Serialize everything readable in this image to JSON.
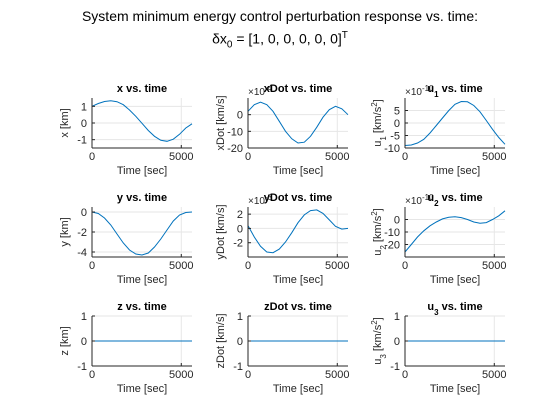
{
  "figure": {
    "suptitle_line1": "System minimum energy control perturbation response vs. time:",
    "suptitle_line2_main": "δx",
    "suptitle_line2_sub": "0",
    "suptitle_line2_rest": " = [1, 0, 0, 0, 0, 0]",
    "suptitle_line2_sup": "T"
  },
  "colors": {
    "line": "#0072BD",
    "grid": "#e6e6e6",
    "axis": "#262626"
  },
  "chart_data": [
    {
      "type": "line",
      "title": "x vs. time",
      "xlabel": "Time [sec]",
      "ylabel": "x [km]",
      "xlim": [
        0,
        5600
      ],
      "ylim": [
        -1.5,
        1.5
      ],
      "yticks": [
        -1,
        0,
        1
      ],
      "xticks": [
        0,
        5000
      ],
      "x": [
        0,
        350,
        700,
        1050,
        1400,
        1750,
        2100,
        2450,
        2800,
        3150,
        3500,
        3850,
        4200,
        4550,
        4900,
        5250,
        5600
      ],
      "y": [
        1.0,
        1.17,
        1.29,
        1.34,
        1.28,
        1.1,
        0.78,
        0.4,
        -0.02,
        -0.45,
        -0.8,
        -1.04,
        -1.1,
        -0.97,
        -0.68,
        -0.3,
        -0.05
      ]
    },
    {
      "type": "line",
      "title": "xDot vs. time",
      "xlabel": "Time [sec]",
      "ylabel": "xDot [km/s]",
      "y_exponent_label": "×10",
      "y_exponent_power": "-4",
      "xlim": [
        0,
        5600
      ],
      "ylim": [
        -20,
        10
      ],
      "yticks": [
        -20,
        -10,
        0
      ],
      "xticks": [
        0,
        5000
      ],
      "x": [
        0,
        350,
        700,
        1050,
        1400,
        1750,
        2100,
        2450,
        2800,
        3150,
        3500,
        3850,
        4200,
        4550,
        4900,
        5250,
        5600
      ],
      "y": [
        2,
        6,
        7.5,
        6,
        2,
        -4,
        -10,
        -14.5,
        -17,
        -16.5,
        -13,
        -7.5,
        -1.5,
        3,
        5,
        3.5,
        0
      ]
    },
    {
      "type": "line",
      "title": "u_1 vs. time",
      "xlabel": "Time [sec]",
      "ylabel": "u_1 [km/s^2]",
      "y_exponent_label": "×10",
      "y_exponent_power": "-10",
      "xlim": [
        0,
        5600
      ],
      "ylim": [
        -10,
        10
      ],
      "yticks": [
        -10,
        -5,
        0,
        5
      ],
      "xticks": [
        0,
        5000
      ],
      "x": [
        0,
        350,
        700,
        1050,
        1400,
        1750,
        2100,
        2450,
        2800,
        3150,
        3500,
        3850,
        4200,
        4550,
        4900,
        5250,
        5600
      ],
      "y": [
        -9,
        -8.8,
        -8,
        -6.5,
        -4,
        -1,
        2,
        5,
        7.5,
        8.6,
        8.5,
        7,
        4.5,
        1,
        -2.5,
        -5.8,
        -8.5
      ]
    },
    {
      "type": "line",
      "title": "y vs. time",
      "xlabel": "Time [sec]",
      "ylabel": "y [km]",
      "xlim": [
        0,
        5600
      ],
      "ylim": [
        -4.5,
        0.5
      ],
      "yticks": [
        -4,
        -2,
        0
      ],
      "xticks": [
        0,
        5000
      ],
      "x": [
        0,
        350,
        700,
        1050,
        1400,
        1750,
        2100,
        2450,
        2800,
        3150,
        3500,
        3850,
        4200,
        4550,
        4900,
        5250,
        5600
      ],
      "y": [
        0,
        -0.15,
        -0.6,
        -1.3,
        -2.2,
        -3.1,
        -3.8,
        -4.2,
        -4.3,
        -4.1,
        -3.5,
        -2.7,
        -1.8,
        -0.9,
        -0.3,
        -0.05,
        0
      ]
    },
    {
      "type": "line",
      "title": "yDot vs. time",
      "xlabel": "Time [sec]",
      "ylabel": "yDot [km/s]",
      "y_exponent_label": "×10",
      "y_exponent_power": "-3",
      "xlim": [
        0,
        5600
      ],
      "ylim": [
        -4,
        3
      ],
      "yticks": [
        -2,
        0,
        2
      ],
      "xticks": [
        0,
        5000
      ],
      "x": [
        0,
        350,
        700,
        1050,
        1400,
        1750,
        2100,
        2450,
        2800,
        3150,
        3500,
        3850,
        4200,
        4550,
        4900,
        5250,
        5600
      ],
      "y": [
        0.4,
        -1.2,
        -2.5,
        -3.3,
        -3.4,
        -2.9,
        -1.9,
        -0.6,
        0.8,
        1.9,
        2.5,
        2.6,
        2.1,
        1.2,
        0.3,
        -0.1,
        0
      ]
    },
    {
      "type": "line",
      "title": "u_2 vs. time",
      "xlabel": "Time [sec]",
      "ylabel": "u_2 [km/s^2]",
      "y_exponent_label": "×10",
      "y_exponent_power": "-10",
      "xlim": [
        0,
        5600
      ],
      "ylim": [
        -30,
        10
      ],
      "yticks": [
        -20,
        -10,
        0
      ],
      "xticks": [
        0,
        5000
      ],
      "x": [
        0,
        350,
        700,
        1050,
        1400,
        1750,
        2100,
        2450,
        2800,
        3150,
        3500,
        3850,
        4200,
        4550,
        4900,
        5250,
        5600
      ],
      "y": [
        -26,
        -20,
        -14,
        -9,
        -5,
        -2,
        0.5,
        1.8,
        2.2,
        1.5,
        0,
        -2,
        -3,
        -2.5,
        0,
        3,
        7
      ]
    },
    {
      "type": "line",
      "title": "z vs. time",
      "xlabel": "Time [sec]",
      "ylabel": "z [km]",
      "xlim": [
        0,
        5600
      ],
      "ylim": [
        -1,
        1
      ],
      "yticks": [
        -1,
        0,
        1
      ],
      "xticks": [
        0,
        5000
      ],
      "x": [
        0,
        5600
      ],
      "y": [
        0,
        0
      ]
    },
    {
      "type": "line",
      "title": "zDot vs. time",
      "xlabel": "Time [sec]",
      "ylabel": "zDot [km/s]",
      "xlim": [
        0,
        5600
      ],
      "ylim": [
        -1,
        1
      ],
      "yticks": [
        -1,
        0,
        1
      ],
      "xticks": [
        0,
        5000
      ],
      "x": [
        0,
        5600
      ],
      "y": [
        0,
        0
      ]
    },
    {
      "type": "line",
      "title": "u_3 vs. time",
      "xlabel": "Time [sec]",
      "ylabel": "u_3 [km/s^2]",
      "xlim": [
        0,
        5600
      ],
      "ylim": [
        -1,
        1
      ],
      "yticks": [
        -1,
        0,
        1
      ],
      "xticks": [
        0,
        5000
      ],
      "x": [
        0,
        5600
      ],
      "y": [
        0,
        0
      ]
    }
  ]
}
